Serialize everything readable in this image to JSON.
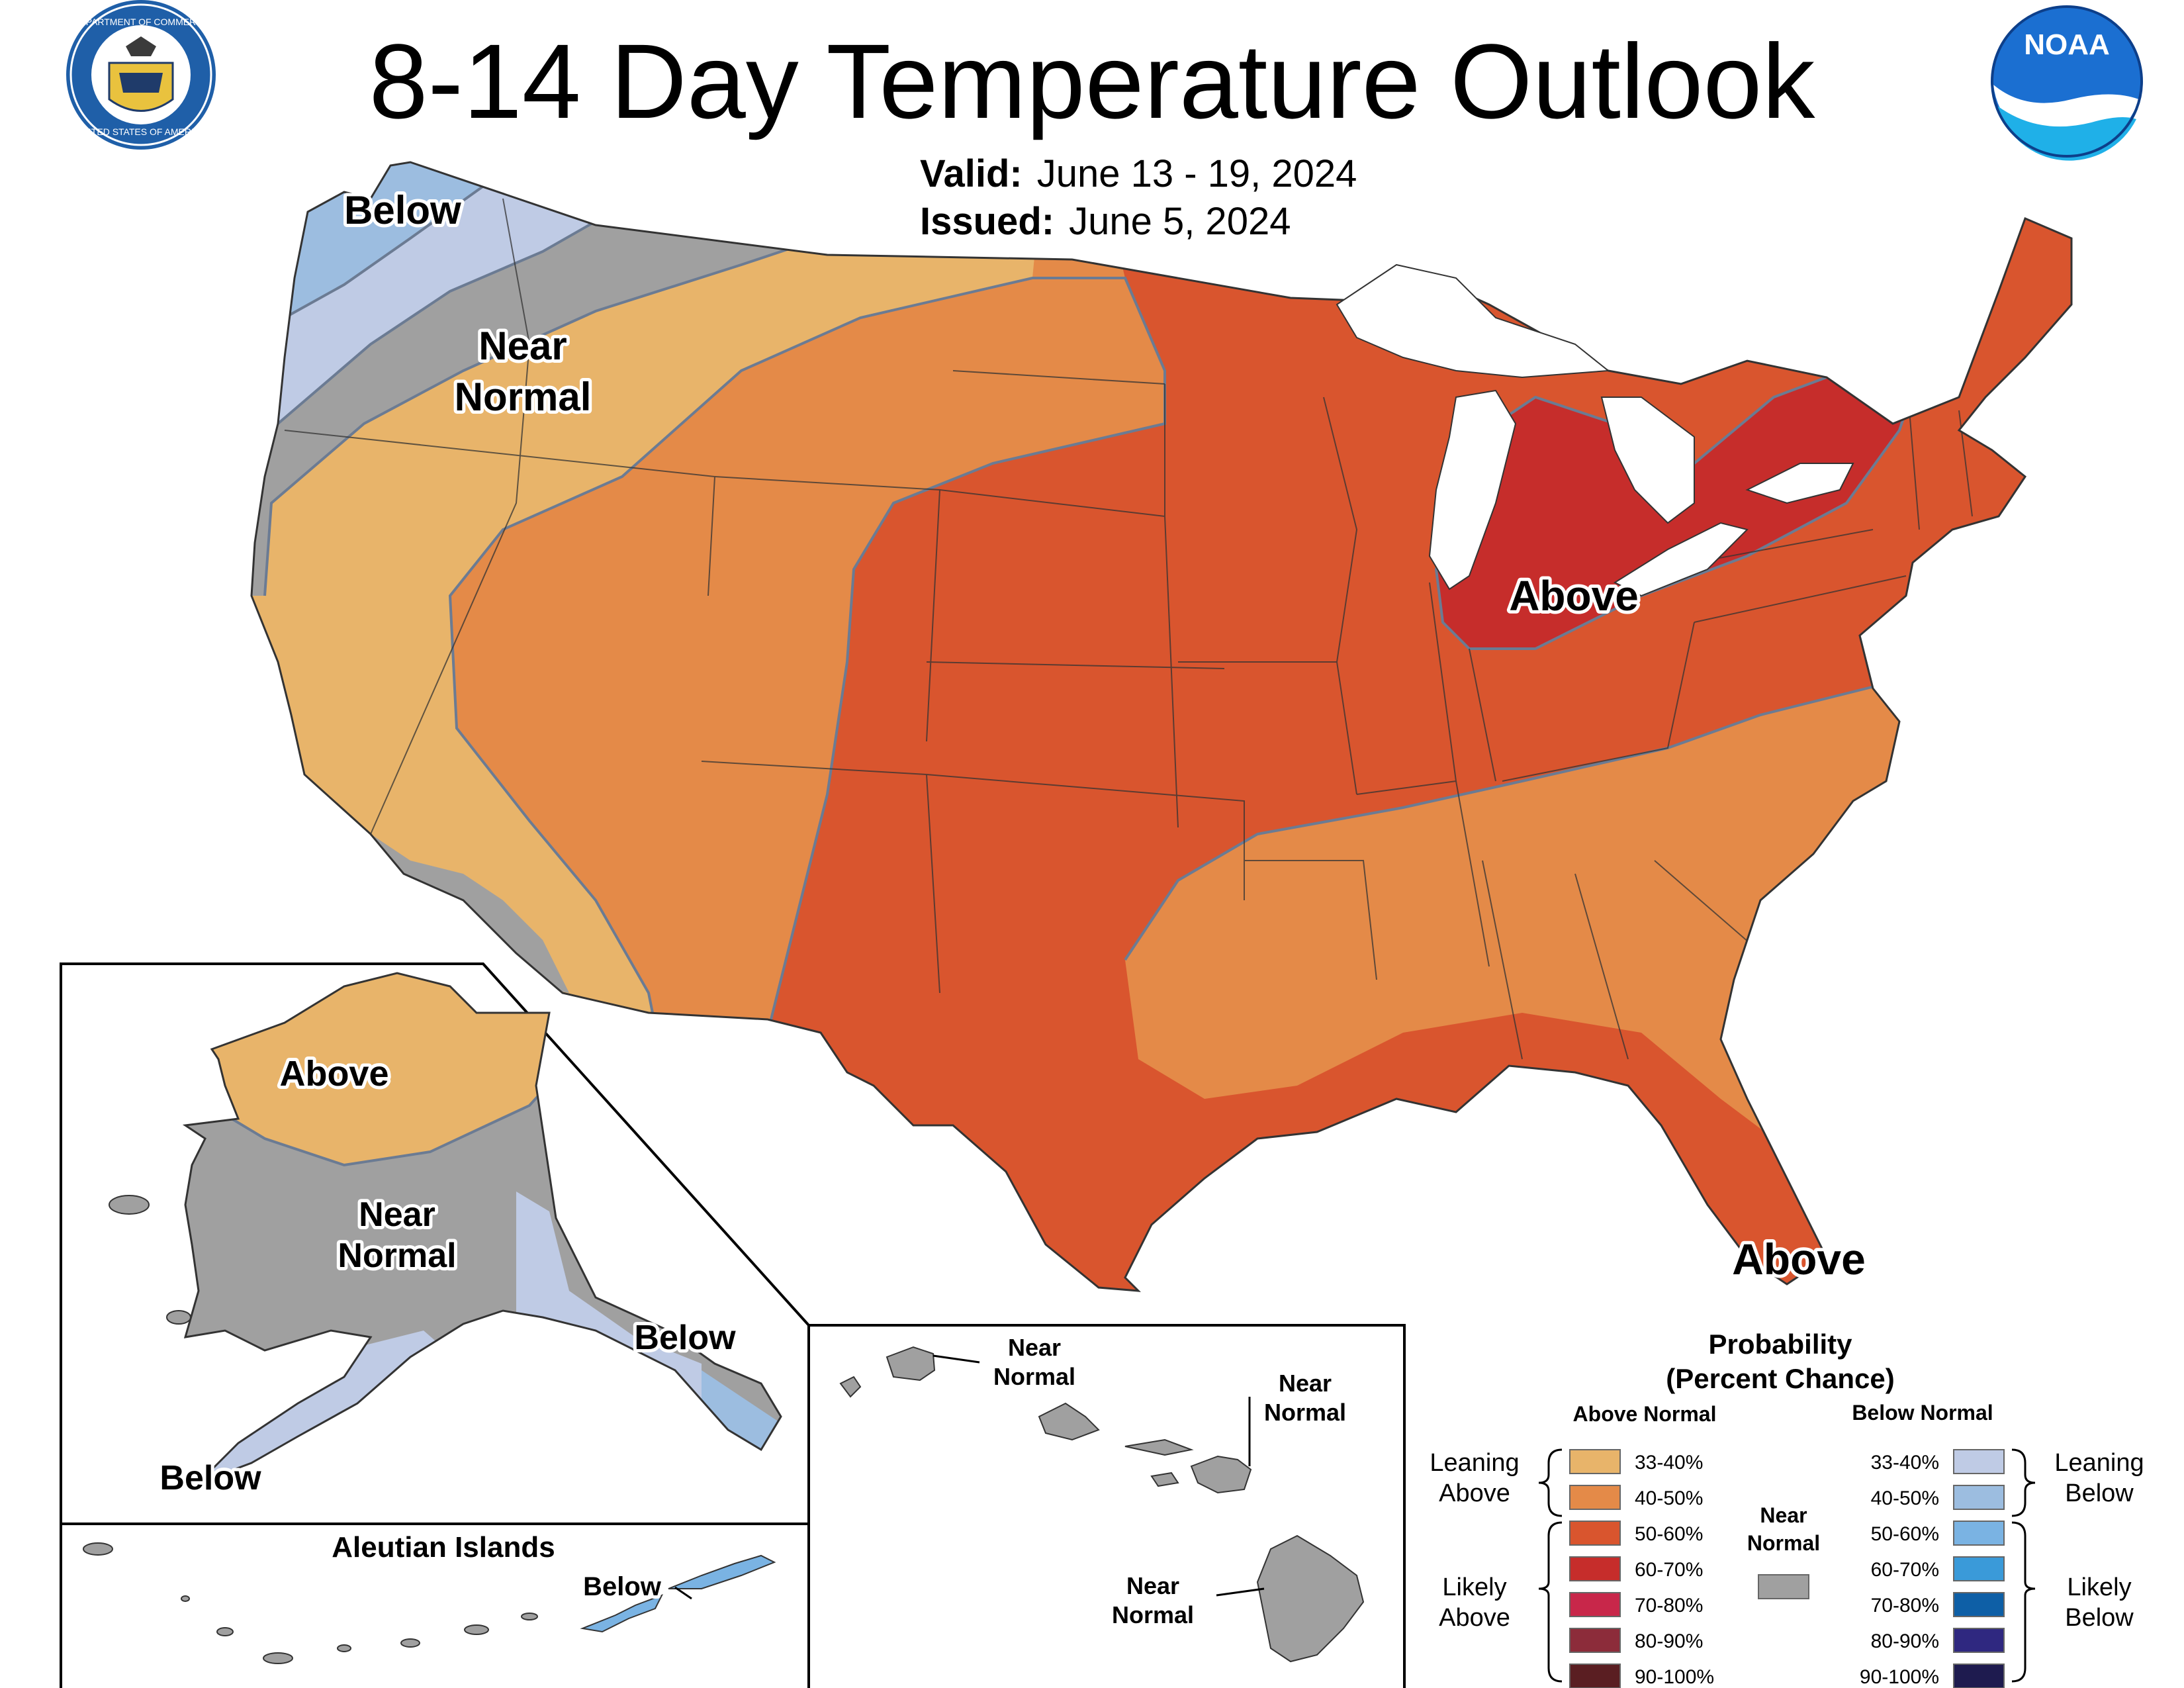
{
  "header": {
    "title": "8-14 Day Temperature Outlook",
    "valid_label": "Valid:",
    "valid_value": "June 13 - 19, 2024",
    "issued_label": "Issued:",
    "issued_value": "June 5, 2024"
  },
  "logos": {
    "commerce_seal_top": "DEPARTMENT OF COMMERCE",
    "commerce_seal_bottom": "UNITED STATES OF AMERICA",
    "noaa_text": "NOAA"
  },
  "conus_labels": {
    "below_nw": "Below",
    "near_normal_line1": "Near",
    "near_normal_line2": "Normal",
    "above_great_lakes": "Above",
    "above_florida": "Above"
  },
  "alaska_labels": {
    "above": "Above",
    "near_normal_line1": "Near",
    "near_normal_line2": "Normal",
    "below_southeast": "Below",
    "below_southwest": "Below",
    "aleutian_title": "Aleutian Islands",
    "aleutian_below": "Below"
  },
  "hawaii_labels": {
    "kauai_line1": "Near",
    "kauai_line2": "Normal",
    "maui_line1": "Near",
    "maui_line2": "Normal",
    "big_island_line1": "Near",
    "big_island_line2": "Normal"
  },
  "legend": {
    "title_line1": "Probability",
    "title_line2": "(Percent Chance)",
    "above_header": "Above Normal",
    "below_header": "Below Normal",
    "leaning_above_1": "Leaning",
    "leaning_above_2": "Above",
    "likely_above_1": "Likely",
    "likely_above_2": "Above",
    "leaning_below_1": "Leaning",
    "leaning_below_2": "Below",
    "likely_below_1": "Likely",
    "likely_below_2": "Below",
    "near_normal_1": "Near",
    "near_normal_2": "Normal",
    "near_normal_color": "#a0a0a0",
    "above_bins": [
      {
        "range": "33-40%",
        "color": "#e8b46a"
      },
      {
        "range": "40-50%",
        "color": "#e48a48"
      },
      {
        "range": "50-60%",
        "color": "#d9552e"
      },
      {
        "range": "60-70%",
        "color": "#c62d2b"
      },
      {
        "range": "70-80%",
        "color": "#c8274a"
      },
      {
        "range": "80-90%",
        "color": "#8c2c3a"
      },
      {
        "range": "90-100%",
        "color": "#5a1e22"
      }
    ],
    "below_bins": [
      {
        "range": "33-40%",
        "color": "#bfcbe5"
      },
      {
        "range": "40-50%",
        "color": "#9cbde0"
      },
      {
        "range": "50-60%",
        "color": "#7ab3e3"
      },
      {
        "range": "60-70%",
        "color": "#3a9ad9"
      },
      {
        "range": "70-80%",
        "color": "#0e5fa6"
      },
      {
        "range": "80-90%",
        "color": "#2f2880"
      },
      {
        "range": "90-100%",
        "color": "#1e1b4f"
      }
    ]
  }
}
